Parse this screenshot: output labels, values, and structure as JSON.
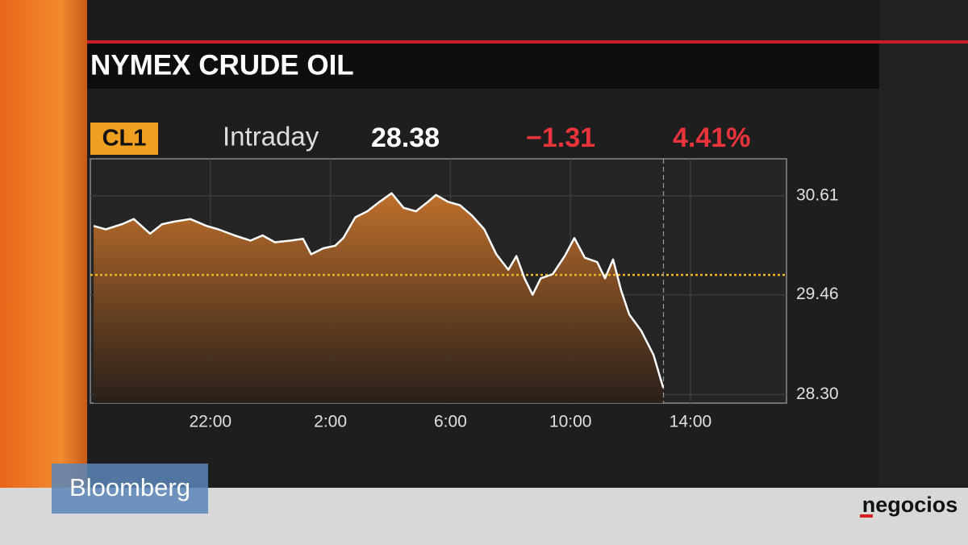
{
  "chart_data": {
    "type": "area",
    "title": "NYMEX CRUDE OIL",
    "ticker": "CL1",
    "period": "Intraday",
    "last": "28.38",
    "change": "−1.31",
    "change_pct": "4.41%",
    "x": [
      18.11,
      18.51,
      19.05,
      19.45,
      19.99,
      20.39,
      20.79,
      21.33,
      21.87,
      22.27,
      22.81,
      23.34,
      23.74,
      24.15,
      24.68,
      25.09,
      25.36,
      25.76,
      26.16,
      26.43,
      26.83,
      27.23,
      27.64,
      28.04,
      28.44,
      28.85,
      29.25,
      29.52,
      29.92,
      30.32,
      30.72,
      31.13,
      31.53,
      31.93,
      32.2,
      32.47,
      32.74,
      33.01,
      33.41,
      33.81,
      34.13,
      34.48,
      34.89,
      35.15,
      35.42,
      35.69,
      35.96,
      36.36,
      36.77,
      37.09
    ],
    "values": [
      30.26,
      30.22,
      30.28,
      30.34,
      30.17,
      30.28,
      30.31,
      30.34,
      30.26,
      30.22,
      30.15,
      30.09,
      30.15,
      30.07,
      30.09,
      30.11,
      29.93,
      30.0,
      30.03,
      30.12,
      30.36,
      30.43,
      30.54,
      30.64,
      30.47,
      30.43,
      30.54,
      30.62,
      30.54,
      30.5,
      30.38,
      30.22,
      29.93,
      29.75,
      29.91,
      29.65,
      29.46,
      29.65,
      29.7,
      29.91,
      30.12,
      29.89,
      29.84,
      29.65,
      29.87,
      29.51,
      29.23,
      29.04,
      28.76,
      28.38
    ],
    "color": "#ffffff",
    "fill_color": "#c0702c",
    "reference_value": 29.69,
    "reference_color": "#f0b429",
    "current_x": 37.1,
    "xlim": [
      18,
      41.2
    ],
    "ylim": [
      28.2,
      31.04
    ],
    "xticks": [
      {
        "value": 22,
        "label": "22:00"
      },
      {
        "value": 26,
        "label": "2:00"
      },
      {
        "value": 30,
        "label": "6:00"
      },
      {
        "value": 34,
        "label": "10:00"
      },
      {
        "value": 38,
        "label": "14:00"
      }
    ],
    "yticks": [
      {
        "value": 30.61,
        "label": "30.61"
      },
      {
        "value": 29.46,
        "label": "29.46"
      },
      {
        "value": 28.3,
        "label": "28.30"
      }
    ],
    "grid": true
  },
  "branding": {
    "network": "Bloomberg",
    "site": "negocios"
  }
}
